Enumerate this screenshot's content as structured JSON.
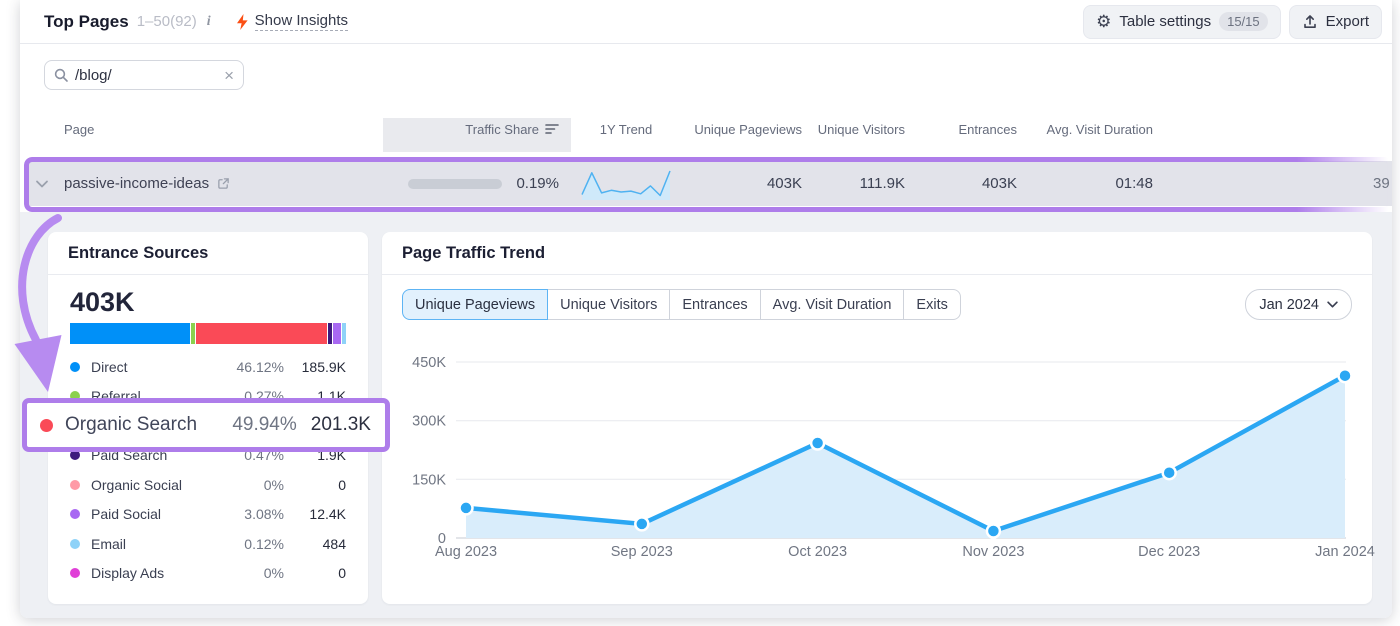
{
  "header": {
    "title": "Top Pages",
    "range": "1–50(92)",
    "info_glyph": "i",
    "gear_glyph": "⚙",
    "insights_label": "Show Insights",
    "table_settings_label": "Table settings",
    "table_settings_badge": "15/15",
    "export_label": "Export"
  },
  "search": {
    "value": "/blog/",
    "clear_glyph": "×"
  },
  "table": {
    "columns": [
      "Page",
      "Traffic Share",
      "1Y Trend",
      "Unique Pageviews",
      "Unique Visitors",
      "Entrances",
      "Avg. Visit Duration"
    ],
    "row": {
      "page": "passive-income-ideas",
      "traffic_share": "0.19%",
      "unique_pageviews": "403K",
      "unique_visitors": "111.9K",
      "entrances": "403K",
      "avg_visit_duration": "01:48",
      "clipped_value": "39",
      "sparkline": [
        5,
        30,
        7,
        10,
        8,
        9,
        6,
        15,
        4,
        32
      ]
    }
  },
  "sources": {
    "title": "Entrance Sources",
    "total": "403K",
    "items": [
      {
        "label": "Direct",
        "pct": "46.12%",
        "value": "185.9K",
        "color": "#0090f8",
        "share": 46.12
      },
      {
        "label": "Referral",
        "pct": "0.27%",
        "value": "1.1K",
        "color": "#8bd14e",
        "share": 0.27
      },
      {
        "label": "Organic Search",
        "pct": "49.94%",
        "value": "201.3K",
        "color": "#fa4a57",
        "share": 49.94
      },
      {
        "label": "Paid Search",
        "pct": "0.47%",
        "value": "1.9K",
        "color": "#3d1a7d",
        "share": 0.47
      },
      {
        "label": "Organic Social",
        "pct": "0%",
        "value": "0",
        "color": "#ff9aa6",
        "share": 0
      },
      {
        "label": "Paid Social",
        "pct": "3.08%",
        "value": "12.4K",
        "color": "#a868f2",
        "share": 3.08
      },
      {
        "label": "Email",
        "pct": "0.12%",
        "value": "484",
        "color": "#8ed2f8",
        "share": 0.12
      },
      {
        "label": "Display Ads",
        "pct": "0%",
        "value": "0",
        "color": "#e03fd7",
        "share": 0
      }
    ]
  },
  "annotation": {
    "accent": "#ae7dea",
    "highlighted_source": "Organic Search"
  },
  "trend_panel": {
    "title": "Page Traffic Trend",
    "tabs": [
      "Unique Pageviews",
      "Unique Visitors",
      "Entrances",
      "Avg. Visit Duration",
      "Exits"
    ],
    "active_tab": "Unique Pageviews",
    "period": "Jan 2024"
  },
  "chart_data": {
    "type": "line",
    "title": "Page Traffic Trend — Unique Pageviews",
    "x": [
      "Aug 2023",
      "Sep 2023",
      "Oct 2023",
      "Nov 2023",
      "Dec 2023",
      "Jan 2024"
    ],
    "series": [
      {
        "name": "Unique Pageviews",
        "values": [
          77000,
          36000,
          243000,
          18000,
          167000,
          415000
        ]
      }
    ],
    "ylim": [
      0,
      450000
    ],
    "yticks": [
      0,
      150000,
      300000,
      450000
    ],
    "ytick_labels": [
      "0",
      "150K",
      "300K",
      "450K"
    ],
    "grid": true,
    "legend": "none",
    "line_color": "#2ba7f3",
    "fill_color": "#d9edfb"
  }
}
